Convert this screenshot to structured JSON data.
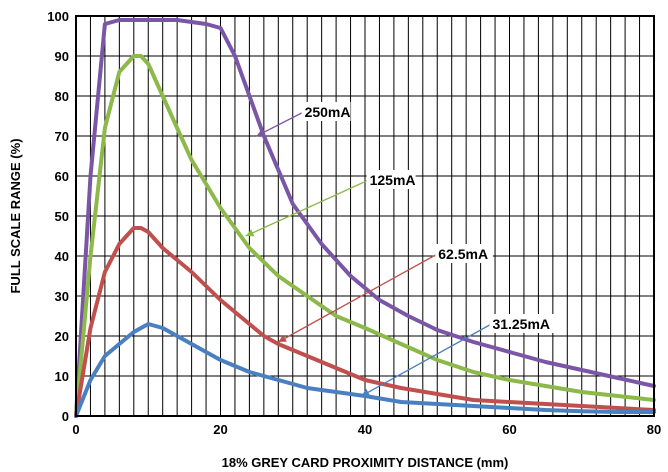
{
  "chart_data": {
    "type": "line",
    "title": "",
    "xlabel": "18% GREY CARD PROXIMITY DISTANCE (mm)",
    "ylabel": "FULL SCALE RANGE (%)",
    "xlim": [
      0,
      80
    ],
    "ylim": [
      0,
      100
    ],
    "x_ticks": [
      0,
      20,
      40,
      60,
      80
    ],
    "y_ticks": [
      0,
      10,
      20,
      30,
      40,
      50,
      60,
      70,
      80,
      90,
      100
    ],
    "grid": true,
    "legend": "inline labels with arrows",
    "series": [
      {
        "name": "250mA",
        "color": "#7b56a6",
        "x": [
          0,
          2,
          4,
          6,
          8,
          10,
          14,
          18,
          20,
          22,
          26,
          30,
          34,
          38,
          42,
          46,
          50,
          55,
          60,
          65,
          70,
          75,
          80
        ],
        "y": [
          0,
          60,
          98,
          99,
          99,
          99,
          99,
          98,
          97,
          90,
          70,
          53,
          43,
          35,
          29,
          25,
          21.5,
          18.5,
          16,
          13.5,
          11.5,
          9.5,
          7.5
        ]
      },
      {
        "name": "125mA",
        "color": "#8db94b",
        "x": [
          0,
          2,
          4,
          6,
          8,
          9,
          10,
          12,
          14,
          16,
          18,
          20,
          24,
          28,
          32,
          36,
          40,
          45,
          50,
          55,
          60,
          65,
          70,
          75,
          80
        ],
        "y": [
          0,
          40,
          72,
          86,
          90,
          90,
          88,
          80,
          72,
          64,
          58,
          52,
          42,
          35,
          30,
          25,
          22,
          18,
          14,
          11,
          9,
          7.5,
          6,
          5,
          4
        ]
      },
      {
        "name": "62.5mA",
        "color": "#c0504d",
        "x": [
          0,
          2,
          4,
          6,
          8,
          9,
          10,
          12,
          16,
          20,
          24,
          26,
          28,
          32,
          36,
          40,
          45,
          50,
          55,
          60,
          65,
          70,
          75,
          80
        ],
        "y": [
          0,
          22,
          36,
          43,
          47,
          47,
          46,
          42,
          36,
          29,
          23,
          20,
          18,
          15,
          12,
          9,
          7,
          5.5,
          4,
          3.5,
          3,
          2.5,
          2,
          1.5
        ]
      },
      {
        "name": "31.25mA",
        "color": "#4a7fc1",
        "x": [
          0,
          2,
          4,
          6,
          8,
          10,
          12,
          16,
          20,
          24,
          28,
          32,
          36,
          40,
          45,
          50,
          55,
          60,
          65,
          70,
          75,
          80
        ],
        "y": [
          0,
          9,
          15,
          18,
          21,
          23,
          22,
          18,
          14,
          11,
          9,
          7,
          6,
          5,
          3.5,
          3,
          2.5,
          2,
          1.5,
          1.2,
          1,
          1
        ]
      }
    ],
    "annotations": [
      {
        "text": "250mA",
        "series": "250mA",
        "label_xy": [
          31.5,
          76
        ],
        "arrow_to": [
          25,
          70
        ]
      },
      {
        "text": "125mA",
        "series": "125mA",
        "label_xy": [
          40.5,
          59
        ],
        "arrow_to": [
          23.5,
          45
        ]
      },
      {
        "text": "62.5mA",
        "series": "62.5mA",
        "label_xy": [
          50,
          40.5
        ],
        "arrow_to": [
          28,
          18.5
        ]
      },
      {
        "text": "31.25mA",
        "series": "31.25mA",
        "label_xy": [
          57.5,
          23
        ],
        "arrow_to": [
          39.5,
          5
        ]
      }
    ]
  }
}
